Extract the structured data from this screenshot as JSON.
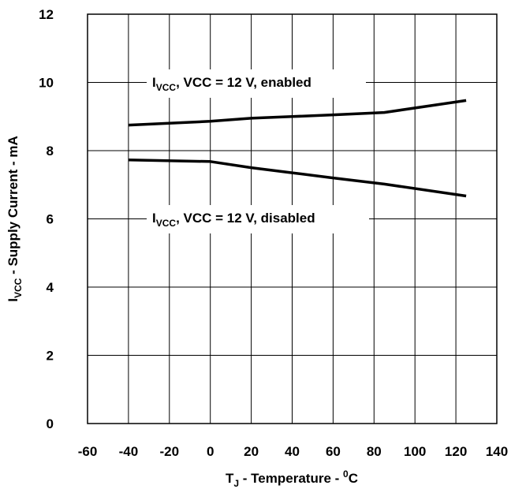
{
  "chart_data": {
    "type": "line",
    "xlabel": {
      "main": "T",
      "sub": "J",
      "middle": " - Temperature - ",
      "sup": "0",
      "end": "C"
    },
    "ylabel": {
      "main": "I",
      "sub": "VCC",
      "end": " - Supply Current - mA"
    },
    "xlim": [
      -60,
      140
    ],
    "ylim": [
      0,
      12
    ],
    "xticks": [
      -60,
      -40,
      -20,
      0,
      20,
      40,
      60,
      80,
      100,
      120,
      140
    ],
    "yticks": [
      0,
      2,
      4,
      6,
      8,
      10,
      12
    ],
    "grid": true,
    "series": [
      {
        "name": "I_VCC, VCC = 12 V, enabled",
        "label": {
          "main": "I",
          "sub": "VCC",
          "end": ", VCC = 12 V, enabled"
        },
        "x": [
          -40,
          0,
          20,
          40,
          60,
          85,
          125
        ],
        "y": [
          8.75,
          8.86,
          8.95,
          9.0,
          9.05,
          9.12,
          9.47
        ]
      },
      {
        "name": "I_VCC, VCC = 12 V, disabled",
        "label": {
          "main": "I",
          "sub": "VCC",
          "end": ", VCC = 12 V, disabled"
        },
        "x": [
          -40,
          0,
          20,
          40,
          60,
          85,
          125
        ],
        "y": [
          7.73,
          7.68,
          7.5,
          7.35,
          7.2,
          7.02,
          6.67
        ]
      }
    ]
  }
}
